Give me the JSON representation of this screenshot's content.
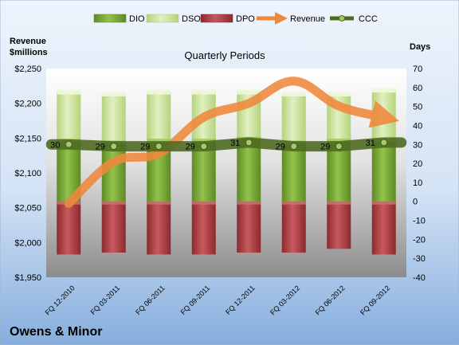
{
  "company": "Owens & Minor",
  "chart_data": {
    "type": "bar",
    "title": "Quarterly Periods",
    "left_axis_title": [
      "Revenue",
      "$millions"
    ],
    "right_axis_title": "Days",
    "left_ylim": [
      1950,
      2250
    ],
    "left_ticks": [
      "$1,950",
      "$2,000",
      "$2,050",
      "$2,100",
      "$2,150",
      "$2,200",
      "$2,250"
    ],
    "left_tick_values": [
      1950,
      2000,
      2050,
      2100,
      2150,
      2200,
      2250
    ],
    "right_ylim": [
      -40,
      70
    ],
    "right_ticks": [
      -40,
      -30,
      -20,
      -10,
      0,
      10,
      20,
      30,
      40,
      50,
      60,
      70
    ],
    "grid": false,
    "legend_position": "top",
    "legend": [
      "DIO",
      "DSO",
      "DPO",
      "Revenue",
      "CCC"
    ],
    "categories": [
      "FQ 12-2010",
      "FQ 03-2011",
      "FQ 06-2011",
      "FQ 09-2011",
      "FQ 12-2011",
      "FQ 03-2012",
      "FQ 06-2012",
      "FQ 09-2012"
    ],
    "series": [
      {
        "name": "DIO",
        "axis": "right",
        "color": "#7aa83a",
        "values": [
          33,
          32,
          33,
          33,
          34,
          32,
          33,
          33
        ]
      },
      {
        "name": "DSO",
        "axis": "right",
        "color": "#cde4a0",
        "values": [
          25,
          25,
          25,
          25,
          24,
          25,
          24,
          26
        ]
      },
      {
        "name": "DPO",
        "axis": "right",
        "color": "#a83c3f",
        "values": [
          -28,
          -27,
          -28,
          -28,
          -27,
          -27,
          -25,
          -28
        ]
      },
      {
        "name": "Revenue",
        "axis": "left",
        "color": "#f0883c",
        "values": [
          2056,
          2116,
          2128,
          2180,
          2200,
          2232,
          2196,
          2180
        ]
      },
      {
        "name": "CCC",
        "axis": "right",
        "color": "#4e6b22",
        "values": [
          30,
          29,
          29,
          29,
          31,
          29,
          29,
          31
        ]
      }
    ],
    "ccc_labels": [
      "30",
      "29",
      "29",
      "29",
      "31",
      "29",
      "29",
      "31"
    ]
  },
  "colors": {
    "bg_top": "#eaf1fb",
    "bg_bottom": "#8fb4e0",
    "plot_top": "#fdfdfd",
    "plot_bottom": "#8a8a8a"
  }
}
